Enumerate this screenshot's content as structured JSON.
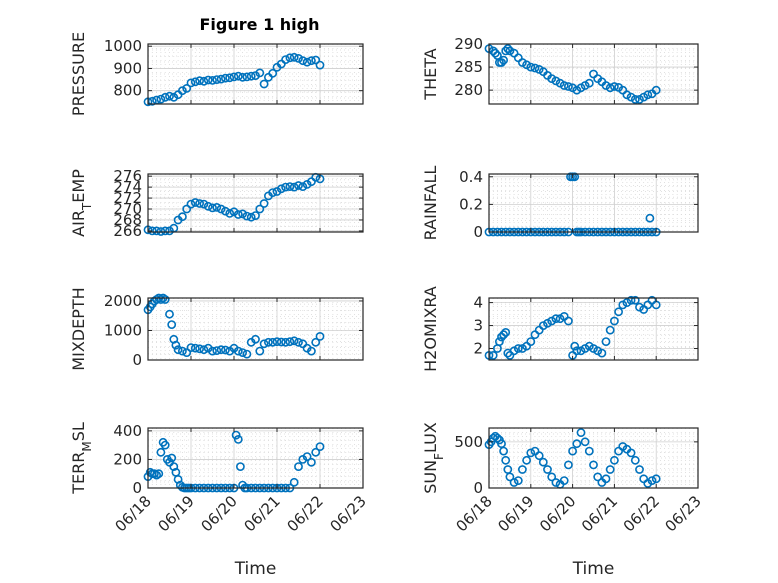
{
  "figure": {
    "title": "Figure 1 high",
    "xlabel": "Time",
    "marker_color": "#0072BD",
    "axes_color": "#262626",
    "grid_color": "#d9d9d9"
  },
  "chart_data": [
    {
      "type": "scatter",
      "panel": "PRESSURE",
      "ylabel": "PRESSURE",
      "title": "Figure 1 high",
      "yticks": [
        800,
        900,
        1000
      ],
      "ylim": [
        740,
        1010
      ],
      "xticks": [],
      "xlim": [
        0,
        5
      ],
      "x": [
        0.0,
        0.1,
        0.2,
        0.3,
        0.4,
        0.5,
        0.6,
        0.7,
        0.8,
        0.9,
        1.0,
        1.1,
        1.2,
        1.3,
        1.4,
        1.5,
        1.6,
        1.7,
        1.8,
        1.9,
        2.0,
        2.1,
        2.2,
        2.3,
        2.4,
        2.5,
        2.6,
        2.7,
        2.8,
        2.9,
        3.0,
        3.1,
        3.2,
        3.3,
        3.4,
        3.5,
        3.6,
        3.7,
        3.8,
        3.9,
        4.0
      ],
      "y": [
        750,
        752,
        758,
        762,
        770,
        775,
        770,
        782,
        800,
        810,
        835,
        840,
        845,
        842,
        848,
        846,
        850,
        852,
        856,
        858,
        862,
        865,
        860,
        862,
        865,
        868,
        880,
        830,
        860,
        878,
        905,
        920,
        940,
        948,
        950,
        945,
        935,
        928,
        935,
        938,
        915
      ]
    },
    {
      "type": "scatter",
      "panel": "THETA",
      "ylabel": "THETA",
      "yticks": [
        280,
        285,
        290
      ],
      "ylim": [
        277,
        290
      ],
      "xticks": [],
      "xlim": [
        0,
        5
      ],
      "x": [
        0.0,
        0.1,
        0.15,
        0.2,
        0.25,
        0.3,
        0.35,
        0.4,
        0.45,
        0.5,
        0.6,
        0.7,
        0.8,
        0.9,
        1.0,
        1.1,
        1.2,
        1.3,
        1.4,
        1.5,
        1.6,
        1.7,
        1.8,
        1.9,
        2.0,
        2.1,
        2.2,
        2.3,
        2.4,
        2.5,
        2.6,
        2.7,
        2.8,
        2.9,
        3.0,
        3.1,
        3.2,
        3.3,
        3.4,
        3.5,
        3.6,
        3.7,
        3.8,
        3.9,
        4.0
      ],
      "y": [
        289,
        288.5,
        288,
        287.5,
        286,
        286,
        286.5,
        288.5,
        289,
        288.5,
        288,
        287,
        286,
        285.5,
        285,
        284.8,
        284.5,
        284,
        283.2,
        282.5,
        282,
        281.5,
        281,
        280.8,
        280.5,
        280,
        280.5,
        281,
        281.5,
        283.5,
        282.5,
        281.8,
        281,
        280.5,
        280.8,
        280.6,
        280,
        279,
        278.5,
        278,
        278,
        278.5,
        279,
        279.2,
        280
      ]
    },
    {
      "type": "scatter",
      "panel": "AIR_TEMP",
      "ylabel": "AIR_TEMP",
      "ylabel_main": "AIR",
      "ylabel_sub": "T",
      "ylabel_rest": "EMP",
      "yticks": [
        266,
        268,
        270,
        272,
        274,
        276
      ],
      "ylim": [
        265.8,
        276.4
      ],
      "xticks": [],
      "xlim": [
        0,
        5
      ],
      "x": [
        0.0,
        0.1,
        0.2,
        0.3,
        0.4,
        0.5,
        0.6,
        0.7,
        0.8,
        0.9,
        1.0,
        1.1,
        1.2,
        1.3,
        1.4,
        1.5,
        1.6,
        1.7,
        1.8,
        1.9,
        2.0,
        2.1,
        2.2,
        2.3,
        2.4,
        2.5,
        2.6,
        2.7,
        2.8,
        2.9,
        3.0,
        3.1,
        3.2,
        3.3,
        3.4,
        3.5,
        3.6,
        3.7,
        3.8,
        3.9,
        4.0
      ],
      "y": [
        266.2,
        266,
        266,
        265.9,
        266,
        266,
        266.5,
        268,
        268.6,
        270,
        270.9,
        271.2,
        271,
        270.9,
        270.5,
        270.2,
        270.3,
        270,
        269.6,
        269.2,
        269.5,
        269,
        269.1,
        268.7,
        268.5,
        268.8,
        270,
        271,
        272.4,
        273,
        273.2,
        273.7,
        274,
        274.1,
        274,
        274.3,
        274.1,
        274.5,
        275,
        275.8,
        275.5
      ]
    },
    {
      "type": "scatter",
      "panel": "RAINFALL",
      "ylabel": "RAINFALL",
      "yticks": [
        0,
        0.2,
        0.4
      ],
      "ylim": [
        0,
        0.42
      ],
      "xticks": [],
      "xlim": [
        0,
        5
      ],
      "x": [
        0.0,
        0.1,
        0.2,
        0.3,
        0.4,
        0.5,
        0.6,
        0.7,
        0.8,
        0.9,
        1.0,
        1.1,
        1.2,
        1.3,
        1.4,
        1.5,
        1.6,
        1.7,
        1.8,
        1.9,
        1.95,
        2.0,
        2.05,
        2.1,
        2.15,
        2.2,
        2.3,
        2.4,
        2.5,
        2.6,
        2.7,
        2.8,
        2.9,
        3.0,
        3.1,
        3.2,
        3.3,
        3.4,
        3.5,
        3.6,
        3.7,
        3.8,
        3.85,
        3.9,
        4.0
      ],
      "y": [
        0,
        0,
        0,
        0,
        0,
        0,
        0,
        0,
        0,
        0,
        0,
        0,
        0,
        0,
        0,
        0,
        0,
        0,
        0,
        0,
        0.4,
        0.4,
        0.4,
        0,
        0,
        0,
        0,
        0,
        0,
        0,
        0,
        0,
        0,
        0,
        0,
        0,
        0,
        0,
        0,
        0,
        0,
        0,
        0.1,
        0,
        0
      ]
    },
    {
      "type": "scatter",
      "panel": "MIXDEPTH",
      "ylabel": "MIXDEPTH",
      "yticks": [
        0,
        1000,
        2000
      ],
      "ylim": [
        0,
        2100
      ],
      "xticks": [],
      "xlim": [
        0,
        5
      ],
      "x": [
        0.0,
        0.05,
        0.1,
        0.15,
        0.2,
        0.25,
        0.3,
        0.35,
        0.4,
        0.5,
        0.55,
        0.6,
        0.65,
        0.7,
        0.8,
        0.9,
        1.0,
        1.1,
        1.2,
        1.3,
        1.4,
        1.5,
        1.6,
        1.7,
        1.8,
        1.9,
        2.0,
        2.1,
        2.2,
        2.3,
        2.4,
        2.5,
        2.6,
        2.7,
        2.8,
        2.9,
        3.0,
        3.1,
        3.2,
        3.3,
        3.4,
        3.5,
        3.6,
        3.7,
        3.8,
        3.9,
        4.0
      ],
      "y": [
        1700,
        1800,
        1900,
        2000,
        2050,
        2100,
        2050,
        2100,
        2050,
        1550,
        1200,
        700,
        500,
        350,
        300,
        250,
        420,
        400,
        380,
        350,
        400,
        300,
        320,
        350,
        340,
        300,
        400,
        300,
        250,
        200,
        600,
        700,
        300,
        550,
        600,
        600,
        620,
        610,
        600,
        620,
        650,
        600,
        550,
        400,
        300,
        600,
        800
      ]
    },
    {
      "type": "scatter",
      "panel": "H2OMIXRA",
      "ylabel": "H2OMIXRA",
      "yticks": [
        2,
        3,
        4
      ],
      "ylim": [
        1.5,
        4.2
      ],
      "xticks": [],
      "xlim": [
        0,
        5
      ],
      "x": [
        0.0,
        0.1,
        0.2,
        0.25,
        0.3,
        0.35,
        0.4,
        0.45,
        0.5,
        0.6,
        0.7,
        0.8,
        0.9,
        1.0,
        1.1,
        1.2,
        1.3,
        1.4,
        1.5,
        1.6,
        1.7,
        1.8,
        1.9,
        2.0,
        2.05,
        2.1,
        2.2,
        2.3,
        2.4,
        2.5,
        2.6,
        2.7,
        2.8,
        2.9,
        3.0,
        3.1,
        3.2,
        3.3,
        3.4,
        3.5,
        3.6,
        3.7,
        3.8,
        3.9,
        4.0
      ],
      "y": [
        1.7,
        1.7,
        2.0,
        2.3,
        2.5,
        2.6,
        2.7,
        1.8,
        1.7,
        1.9,
        2.0,
        2.0,
        2.1,
        2.3,
        2.6,
        2.8,
        3.0,
        3.1,
        3.2,
        3.3,
        3.3,
        3.4,
        3.2,
        1.7,
        2.1,
        1.9,
        1.9,
        2.0,
        2.1,
        2.0,
        1.9,
        1.8,
        2.3,
        2.8,
        3.2,
        3.6,
        3.9,
        4.0,
        4.1,
        4.1,
        3.8,
        3.7,
        3.9,
        4.1,
        3.9
      ]
    },
    {
      "type": "scatter",
      "panel": "TERR_MSL",
      "ylabel": "TERR_MSL",
      "ylabel_main": "TERR",
      "ylabel_sub": "M",
      "ylabel_rest": "SL",
      "yticks": [
        0,
        200,
        400
      ],
      "ylim": [
        0,
        420
      ],
      "xticks": [
        "06/18",
        "06/19",
        "06/20",
        "06/21",
        "06/22",
        "06/23"
      ],
      "xlim": [
        0,
        5
      ],
      "x": [
        0.0,
        0.05,
        0.1,
        0.15,
        0.2,
        0.25,
        0.3,
        0.35,
        0.4,
        0.45,
        0.5,
        0.55,
        0.6,
        0.65,
        0.7,
        0.75,
        0.8,
        0.85,
        0.9,
        0.95,
        1.0,
        1.1,
        1.2,
        1.3,
        1.4,
        1.5,
        1.6,
        1.7,
        1.8,
        1.9,
        2.0,
        2.05,
        2.1,
        2.15,
        2.2,
        2.25,
        2.3,
        2.4,
        2.5,
        2.6,
        2.7,
        2.8,
        2.9,
        3.0,
        3.1,
        3.2,
        3.3,
        3.4,
        3.5,
        3.6,
        3.7,
        3.8,
        3.9,
        4.0
      ],
      "y": [
        80,
        110,
        100,
        100,
        90,
        100,
        250,
        320,
        300,
        200,
        180,
        210,
        150,
        110,
        60,
        20,
        5,
        0,
        0,
        0,
        0,
        0,
        0,
        0,
        0,
        0,
        0,
        0,
        0,
        0,
        0,
        370,
        340,
        150,
        20,
        0,
        0,
        0,
        0,
        0,
        0,
        0,
        0,
        0,
        0,
        0,
        0,
        40,
        150,
        200,
        220,
        180,
        250,
        290
      ]
    },
    {
      "type": "scatter",
      "panel": "SUN_FLUX",
      "ylabel": "SUN_FLUX",
      "ylabel_main": "SUN",
      "ylabel_sub": "F",
      "ylabel_rest": "LUX",
      "yticks": [
        0,
        500
      ],
      "ylim": [
        0,
        650
      ],
      "xticks": [
        "06/18",
        "06/19",
        "06/20",
        "06/21",
        "06/22",
        "06/23"
      ],
      "xlim": [
        0,
        5
      ],
      "x": [
        0.0,
        0.05,
        0.1,
        0.15,
        0.2,
        0.25,
        0.3,
        0.35,
        0.4,
        0.45,
        0.5,
        0.6,
        0.7,
        0.8,
        0.9,
        1.0,
        1.1,
        1.2,
        1.3,
        1.4,
        1.5,
        1.6,
        1.7,
        1.8,
        1.9,
        2.0,
        2.1,
        2.2,
        2.3,
        2.4,
        2.5,
        2.6,
        2.7,
        2.8,
        2.9,
        3.0,
        3.1,
        3.2,
        3.3,
        3.4,
        3.5,
        3.6,
        3.7,
        3.8,
        3.9,
        4.0
      ],
      "y": [
        470,
        500,
        540,
        560,
        540,
        520,
        480,
        400,
        300,
        200,
        120,
        60,
        80,
        200,
        300,
        380,
        400,
        350,
        280,
        200,
        120,
        60,
        40,
        80,
        250,
        400,
        480,
        600,
        500,
        400,
        250,
        120,
        60,
        100,
        200,
        300,
        400,
        450,
        420,
        380,
        300,
        200,
        100,
        50,
        80,
        100
      ]
    }
  ]
}
